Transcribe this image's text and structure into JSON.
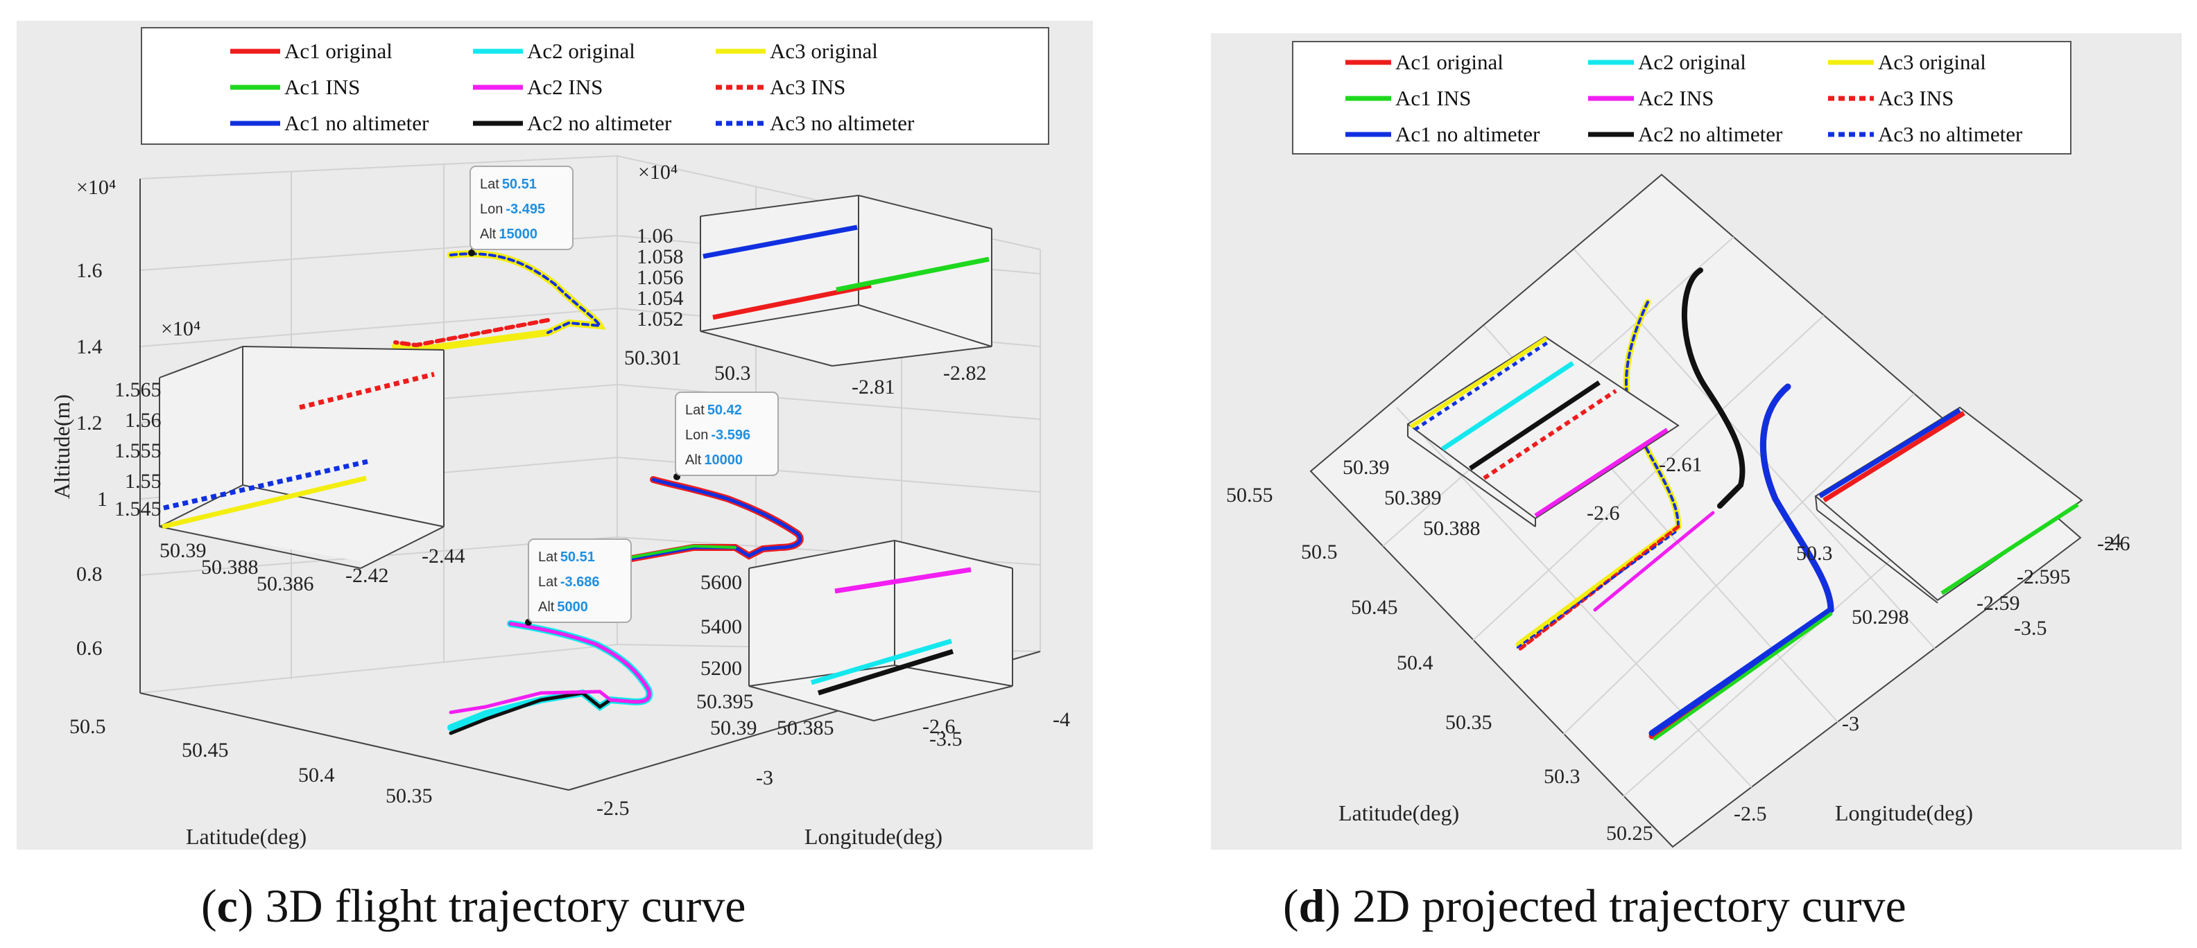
{
  "chart_data": [
    {
      "id": "c",
      "type": "line",
      "subtype": "3d-trajectory",
      "caption_label": "c",
      "caption_text": " 3D flight trajectory curve",
      "xlabel": "Longitude(deg)",
      "ylabel": "Latitude(deg)",
      "zlabel": "Altitude(m)",
      "z_multiplier": "×10⁴",
      "legend": [
        "Ac1 original",
        "Ac2 original",
        "Ac3 original",
        "Ac1 INS",
        "Ac2 INS",
        "Ac3 INS",
        "Ac1 no altimeter",
        "Ac2 no altimeter",
        "Ac3 no altimeter"
      ],
      "z_ticks": [
        "0.6",
        "0.8",
        "1",
        "1.2",
        "1.4",
        "1.6"
      ],
      "lat_ticks": [
        "50.5",
        "50.45",
        "50.4",
        "50.35"
      ],
      "lon_ticks": [
        "-2.5",
        "-3",
        "-3.5",
        "-4"
      ],
      "datatips": [
        {
          "l1": "Lat",
          "v1": "50.51",
          "l2": "Lon",
          "v2": "-3.495",
          "l3": "Alt",
          "v3": "15000"
        },
        {
          "l1": "Lat",
          "v1": "50.42",
          "l2": "Lon",
          "v2": "-3.596",
          "l3": "Alt",
          "v3": "10000"
        },
        {
          "l1": "Lat",
          "v1": "50.51",
          "l2": "Lat",
          "v2": "-3.686",
          "l3": "Alt",
          "v3": "5000"
        }
      ],
      "insets": [
        {
          "multiplier": "×10⁴",
          "z_ticks": [
            "1.565",
            "1.56",
            "1.555",
            "1.55",
            "1.545"
          ],
          "lat_ticks": [
            "50.39",
            "50.388",
            "50.386"
          ],
          "lon_ticks": [
            "-2.42",
            "-2.44"
          ],
          "series": [
            {
              "name": "Ac3 INS",
              "points": [
                [
                  -2.43,
                  50.387,
                  1.5635
                ],
                [
                  -2.43,
                  50.384,
                  1.5645
                ]
              ]
            },
            {
              "name": "Ac3 no altimeter",
              "points": [
                [
                  -2.43,
                  50.387,
                  1.5475
                ],
                [
                  -2.43,
                  50.384,
                  1.5495
                ]
              ]
            },
            {
              "name": "Ac3 original",
              "points": [
                [
                  -2.43,
                  50.387,
                  1.5455
                ],
                [
                  -2.43,
                  50.384,
                  1.5475
                ]
              ]
            }
          ]
        },
        {
          "multiplier": "×10⁴",
          "z_ticks": [
            "1.06",
            "1.058",
            "1.056",
            "1.054",
            "1.052"
          ],
          "lat_ticks": [
            "50.301",
            "50.3"
          ],
          "lon_ticks": [
            "-2.81",
            "-2.82"
          ],
          "series": [
            {
              "name": "Ac1 no altimeter",
              "points": [
                [
                  -2.813,
                  50.3015,
                  1.058
                ],
                [
                  -2.813,
                  50.2995,
                  1.0595
                ]
              ]
            },
            {
              "name": "Ac1 original",
              "points": [
                [
                  -2.813,
                  50.3015,
                  1.0525
                ],
                [
                  -2.813,
                  50.2995,
                  1.0545
                ]
              ]
            },
            {
              "name": "Ac1 INS",
              "points": [
                [
                  -2.818,
                  50.3005,
                  1.0552
                ],
                [
                  -2.818,
                  50.2985,
                  1.0568
                ]
              ]
            }
          ]
        },
        {
          "multiplier": "",
          "z_ticks": [
            "5600",
            "5400",
            "5200"
          ],
          "lat_ticks": [
            "50.395",
            "50.39",
            "50.385"
          ],
          "lon_ticks": [
            "-2.6"
          ],
          "series": [
            {
              "name": "Ac2 INS",
              "points": [
                [
                  -2.6,
                  50.392,
                  5600
                ],
                [
                  -2.6,
                  50.387,
                  5660
                ]
              ]
            },
            {
              "name": "Ac2 original",
              "points": [
                [
                  -2.6,
                  50.392,
                  5110
                ],
                [
                  -2.6,
                  50.387,
                  5240
                ]
              ]
            },
            {
              "name": "Ac2 no altimeter",
              "points": [
                [
                  -2.6,
                  50.392,
                  5050
                ],
                [
                  -2.6,
                  50.387,
                  5190
                ]
              ]
            }
          ]
        }
      ]
    },
    {
      "id": "d",
      "type": "line",
      "subtype": "2d-projected-trajectory",
      "caption_label": "d",
      "caption_text": " 2D projected trajectory curve",
      "xlabel": "Longitude(deg)",
      "ylabel": "Latitude(deg)",
      "legend": [
        "Ac1 original",
        "Ac2 original",
        "Ac3 original",
        "Ac1 INS",
        "Ac2 INS",
        "Ac3 INS",
        "Ac1 no altimeter",
        "Ac2 no altimeter",
        "Ac3 no altimeter"
      ],
      "lat_ticks": [
        "50.55",
        "50.5",
        "50.45",
        "50.4",
        "50.35",
        "50.3",
        "50.25"
      ],
      "lon_ticks": [
        "-2.5",
        "-3",
        "-3.5",
        "-4"
      ],
      "insets": [
        {
          "lat_ticks": [
            "50.39",
            "50.389",
            "50.388"
          ],
          "lon_ticks": [
            "-2.6",
            "-2.61"
          ]
        },
        {
          "lat_ticks": [
            "50.3",
            "50.298"
          ],
          "lon_ticks": [
            "-2.6",
            "-2.595",
            "-2.59"
          ]
        }
      ]
    }
  ],
  "colors": {
    "ac1_original": "#ee1c1c",
    "ac2_original": "#14e8ee",
    "ac3_original": "#f3ee10",
    "ac1_ins": "#1ed81e",
    "ac2_ins": "#f21ef2",
    "ac3_ins": "#ee1c1c",
    "ac1_noalt": "#1030e0",
    "ac2_noalt": "#111111",
    "ac3_noalt": "#1030e0",
    "panel_bg": "#ebebeb",
    "datatip_value": "#1f8fe0"
  }
}
